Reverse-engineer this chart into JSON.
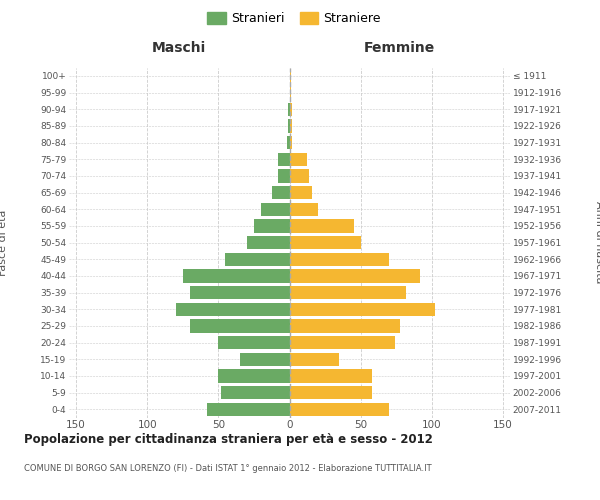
{
  "age_groups": [
    "0-4",
    "5-9",
    "10-14",
    "15-19",
    "20-24",
    "25-29",
    "30-34",
    "35-39",
    "40-44",
    "45-49",
    "50-54",
    "55-59",
    "60-64",
    "65-69",
    "70-74",
    "75-79",
    "80-84",
    "85-89",
    "90-94",
    "95-99",
    "100+"
  ],
  "birth_years": [
    "2007-2011",
    "2002-2006",
    "1997-2001",
    "1992-1996",
    "1987-1991",
    "1982-1986",
    "1977-1981",
    "1972-1976",
    "1967-1971",
    "1962-1966",
    "1957-1961",
    "1952-1956",
    "1947-1951",
    "1942-1946",
    "1937-1941",
    "1932-1936",
    "1927-1931",
    "1922-1926",
    "1917-1921",
    "1912-1916",
    "≤ 1911"
  ],
  "maschi": [
    58,
    48,
    50,
    35,
    50,
    70,
    80,
    70,
    75,
    45,
    30,
    25,
    20,
    12,
    8,
    8,
    2,
    1,
    1,
    0,
    0
  ],
  "femmine": [
    70,
    58,
    58,
    35,
    74,
    78,
    102,
    82,
    92,
    70,
    50,
    45,
    20,
    16,
    14,
    12,
    2,
    2,
    2,
    1,
    1
  ],
  "color_maschi": "#6aaa64",
  "color_femmine": "#f5b731",
  "background_color": "#ffffff",
  "grid_color": "#cccccc",
  "title": "Popolazione per cittadinanza straniera per età e sesso - 2012",
  "subtitle": "COMUNE DI BORGO SAN LORENZO (FI) - Dati ISTAT 1° gennaio 2012 - Elaborazione TUTTITALIA.IT",
  "xlabel_left": "Maschi",
  "xlabel_right": "Femmine",
  "ylabel_left": "Fasce di età",
  "ylabel_right": "Anni di nascita",
  "legend_maschi": "Stranieri",
  "legend_femmine": "Straniere",
  "xlim": 155
}
